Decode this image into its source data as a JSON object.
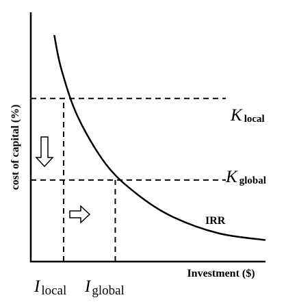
{
  "chart_data": {
    "type": "line",
    "title": "",
    "xlabel": "Investment ($)",
    "ylabel": "cost of capital (%)",
    "grid": false,
    "series": [
      {
        "name": "IRR",
        "points": [
          [
            1.0,
            10.0
          ],
          [
            1.3,
            8.5
          ],
          [
            2.0,
            6.4
          ],
          [
            3.2,
            4.3
          ],
          [
            4.5,
            3.0
          ],
          [
            6.0,
            2.0
          ],
          [
            8.0,
            1.25
          ],
          [
            10.0,
            0.95
          ]
        ]
      }
    ],
    "reference_lines": [
      {
        "axis": "y",
        "value": 7.2,
        "label_symbol": "K",
        "label_subscript": "local"
      },
      {
        "axis": "y",
        "value": 3.6,
        "label_symbol": "K",
        "label_subscript": "global"
      }
    ],
    "markers": [
      {
        "axis": "x",
        "value": 1.4,
        "label_symbol": "I",
        "label_subscript": "local"
      },
      {
        "axis": "x",
        "value": 3.6,
        "label_symbol": "I",
        "label_subscript": "global"
      }
    ],
    "arrows": [
      {
        "direction": "down",
        "meaning": "cost of capital decreases"
      },
      {
        "direction": "right",
        "meaning": "investment increases"
      }
    ],
    "curve_label": "IRR",
    "xlim": [
      0,
      10
    ],
    "ylim": [
      0,
      11
    ]
  }
}
